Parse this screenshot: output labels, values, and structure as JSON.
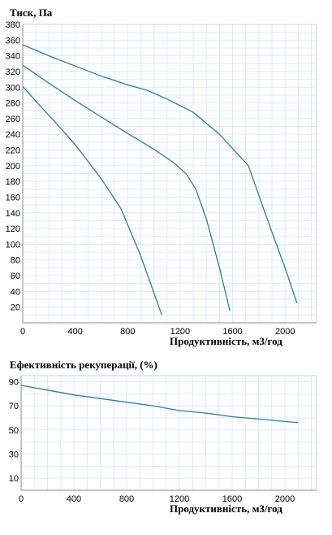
{
  "colors": {
    "series": "#2f7d9a",
    "grid": "#dcebf0",
    "axis": "#8a8a8a"
  },
  "chart_data": [
    {
      "type": "line",
      "title": "Тиск, Па",
      "xlabel": "Продуктивність, м3/год",
      "ylabel": "",
      "xlim": [
        0,
        2240
      ],
      "ylim": [
        0,
        380
      ],
      "xticks": [
        "0",
        "400",
        "800",
        "1200",
        "1600",
        "2000"
      ],
      "yticks": [
        "20",
        "40",
        "60",
        "80",
        "100",
        "120",
        "140",
        "160",
        "180",
        "200",
        "220",
        "240",
        "260",
        "280",
        "300",
        "320",
        "340",
        "360",
        "380"
      ],
      "grid": true,
      "series": [
        {
          "x": [
            0,
            100,
            250,
            400,
            500,
            600,
            750,
            900,
            1060
          ],
          "y": [
            301,
            282,
            255,
            227,
            205,
            183,
            145,
            85,
            10
          ]
        },
        {
          "x": [
            0,
            200,
            400,
            600,
            800,
            1000,
            1150,
            1250,
            1320,
            1400,
            1500,
            1580
          ],
          "y": [
            328,
            305,
            283,
            262,
            241,
            221,
            204,
            189,
            170,
            132,
            70,
            15
          ]
        },
        {
          "x": [
            0,
            200,
            400,
            600,
            800,
            950,
            1100,
            1300,
            1500,
            1720,
            1900,
            2000,
            2090
          ],
          "y": [
            354,
            340,
            327,
            314,
            303,
            296,
            285,
            268,
            240,
            200,
            115,
            70,
            25
          ]
        }
      ]
    },
    {
      "type": "line",
      "title": "Ефективність рекуперації, (%)",
      "xlabel": "Продуктивність, м3/год",
      "ylabel": "",
      "xlim": [
        0,
        2240
      ],
      "ylim": [
        0,
        95
      ],
      "xticks": [
        "0",
        "400",
        "800",
        "1200",
        "1600",
        "2000"
      ],
      "yticks": [
        "10",
        "30",
        "50",
        "70",
        "90"
      ],
      "grid": true,
      "series": [
        {
          "x": [
            0,
            200,
            400,
            600,
            800,
            1000,
            1200,
            1400,
            1600,
            1800,
            2000,
            2100
          ],
          "y": [
            87,
            83,
            79,
            76,
            73,
            70,
            66,
            64,
            61,
            59,
            57,
            56
          ]
        }
      ]
    }
  ]
}
